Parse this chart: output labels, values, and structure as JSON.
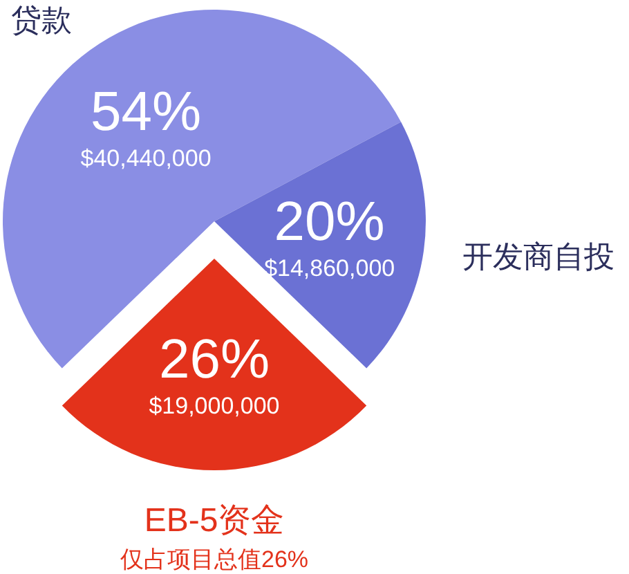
{
  "chart_data": {
    "type": "pie",
    "categories": [
      "贷款",
      "开发商自投",
      "EB-5资金"
    ],
    "values": [
      40440000,
      14860000,
      19000000
    ],
    "colors": [
      "#8a8ee4",
      "#6b71d4",
      "#e3321b"
    ],
    "value_labels": [
      "54%\n$40,440,000",
      "20%\n$14,860,000",
      "26%\n$19,000,000"
    ],
    "annotations": [
      "仅占项目总值26%"
    ]
  }
}
